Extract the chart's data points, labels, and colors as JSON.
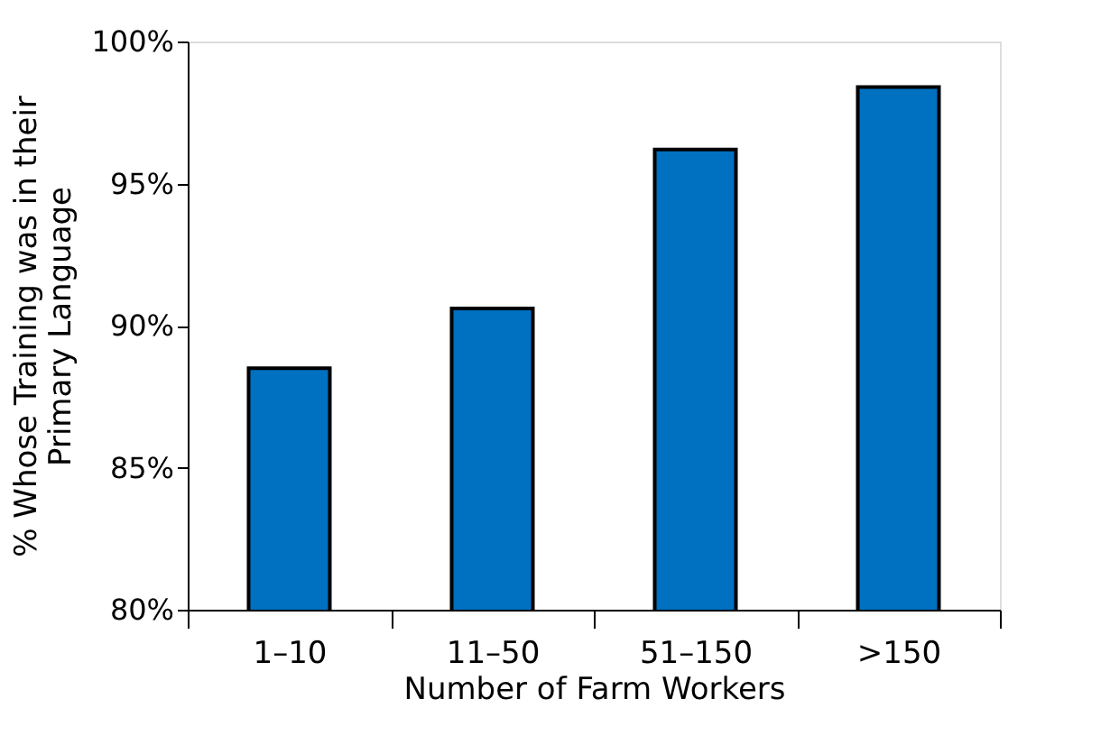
{
  "chart_data": {
    "type": "bar",
    "xlabel": "Number of Farm Workers",
    "ylabel": "% Whose Training was in their Primary Language",
    "categories": [
      "1–10",
      "11–50",
      "51–150",
      ">150"
    ],
    "values": [
      88.5,
      90.6,
      96.2,
      98.4
    ],
    "color": "#0070c0",
    "ylim": [
      80,
      100
    ],
    "yticks": [
      {
        "value": 80,
        "label": "80%"
      },
      {
        "value": 85,
        "label": "85%"
      },
      {
        "value": 90,
        "label": "90%"
      },
      {
        "value": 95,
        "label": "95%"
      },
      {
        "value": 100,
        "label": "100%"
      }
    ],
    "grid": false
  }
}
